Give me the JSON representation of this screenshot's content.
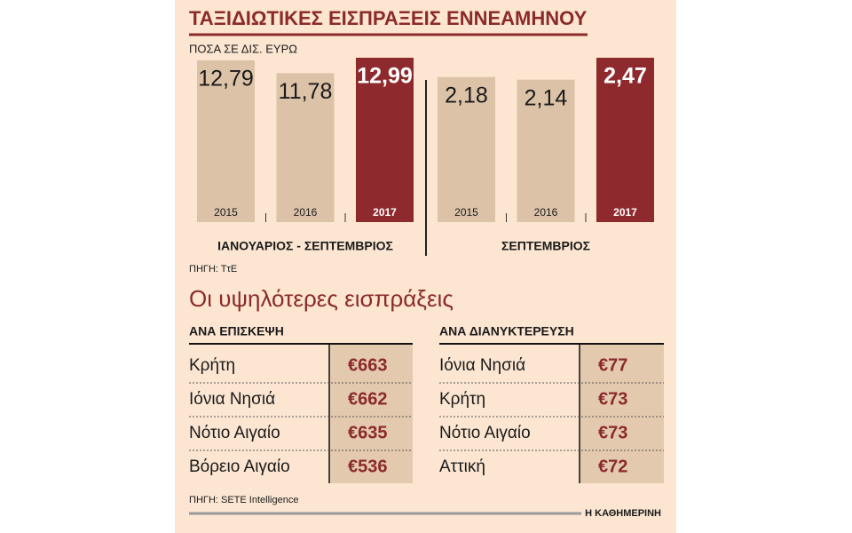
{
  "title": "ΤΑΞΙΔΙΩΤΙΚΕΣ ΕΙΣΠΡΑΞΕΙΣ ΕΝΝΕΑΜΗΝΟΥ",
  "subtitle": "ΠΟΣΑ ΣΕ ΔΙΣ. ΕΥΡΩ",
  "chart_data": [
    {
      "type": "bar",
      "x_label": "ΙΑΝΟΥΑΡΙΟΣ - ΣΕΠΤΕΜΒΡΙΟΣ",
      "categories": [
        "2015",
        "2016",
        "2017"
      ],
      "values": [
        12.79,
        11.78,
        12.99
      ],
      "value_labels": [
        "12,79",
        "11,78",
        "12,99"
      ],
      "colors": [
        "#dcc3a8",
        "#dcc3a8",
        "#8e2a2e"
      ]
    },
    {
      "type": "bar",
      "x_label": "ΣΕΠΤΕΜΒΡΙΟΣ",
      "categories": [
        "2015",
        "2016",
        "2017"
      ],
      "values": [
        2.18,
        2.14,
        2.47
      ],
      "value_labels": [
        "2,18",
        "2,14",
        "2,47"
      ],
      "colors": [
        "#dcc3a8",
        "#dcc3a8",
        "#8e2a2e"
      ]
    }
  ],
  "source_1": "ΠΗΓΗ: ΤτΕ",
  "section_title": "Οι υψηλότερες εισπράξεις",
  "tables": [
    {
      "header": "ΑΝΑ ΕΠΙΣΚΕΨΗ",
      "rows": [
        [
          "Κρήτη",
          "€663"
        ],
        [
          "Ιόνια Νησιά",
          "€662"
        ],
        [
          "Νότιο Αιγαίο",
          "€635"
        ],
        [
          "Βόρειο Αιγαίο",
          "€536"
        ]
      ]
    },
    {
      "header": "ΑΝΑ ΔΙΑΝΥΚΤΕΡΕΥΣΗ",
      "rows": [
        [
          "Ιόνια Νησιά",
          "€77"
        ],
        [
          "Κρήτη",
          "€73"
        ],
        [
          "Νότιο Αιγαίο",
          "€73"
        ],
        [
          "Αττική",
          "€72"
        ]
      ]
    }
  ],
  "source_2": "ΠΗΓΗ: SETE Intelligence",
  "brand": "Η ΚΑΘΗΜΕΡΙΝΗ"
}
